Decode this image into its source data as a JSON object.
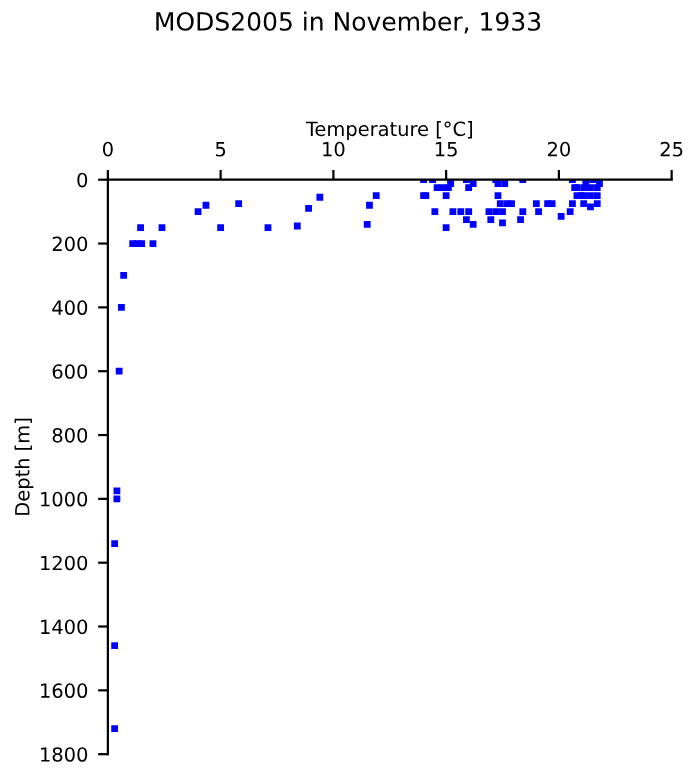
{
  "chart_data": {
    "type": "scatter",
    "title": "MODS2005 in November, 1933",
    "xlabel": "Temperature [°C]",
    "ylabel": "Depth [m]",
    "xlim": [
      0,
      25
    ],
    "xticks": [
      0,
      5,
      10,
      15,
      20,
      25
    ],
    "ylim": [
      1800,
      0
    ],
    "yticks": [
      0,
      200,
      400,
      600,
      800,
      1000,
      1200,
      1400,
      1600,
      1800
    ],
    "grid": false,
    "marker": "square",
    "series": [
      {
        "color": "#0000ff",
        "x": [
          0.3,
          0.3,
          0.3,
          0.4,
          0.4,
          0.5,
          0.6,
          0.7,
          1.1,
          1.3,
          1.5,
          2.0,
          1.45,
          2.4,
          4.0,
          4.35,
          5.0,
          5.8,
          7.1,
          8.4,
          8.9,
          9.4,
          11.5,
          11.6,
          11.9,
          14.0,
          14.0,
          14.1,
          14.4,
          14.5,
          14.6,
          14.85,
          15.0,
          15.0,
          15.1,
          15.2,
          15.2,
          15.3,
          15.65,
          15.9,
          16.0,
          16.0,
          15.9,
          16.2,
          16.2,
          16.9,
          16.98,
          17.2,
          17.2,
          17.3,
          17.3,
          17.4,
          17.5,
          17.5,
          17.6,
          17.7,
          17.9,
          18.3,
          18.4,
          18.4,
          19.0,
          19.1,
          19.5,
          19.7,
          20.1,
          20.5,
          20.6,
          20.6,
          20.7,
          21.0,
          21.1,
          21.4,
          21.7,
          20.8,
          21.1,
          21.4,
          21.7,
          20.8,
          21.1,
          21.4,
          21.7,
          21.2,
          21.5,
          21.8,
          21.2
        ],
        "values": [
          1720,
          1460,
          1140,
          1000,
          975,
          600,
          400,
          300,
          200,
          200,
          200,
          200,
          150,
          150,
          100,
          80,
          150,
          75,
          150,
          145,
          90,
          55,
          140,
          80,
          50,
          0,
          50,
          50,
          0,
          100,
          25,
          25,
          50,
          150,
          25,
          0,
          12,
          100,
          100,
          0,
          25,
          100,
          125,
          12,
          140,
          100,
          125,
          0,
          100,
          12,
          50,
          75,
          100,
          135,
          12,
          75,
          75,
          125,
          100,
          0,
          75,
          100,
          75,
          75,
          115,
          100,
          0,
          75,
          25,
          50,
          75,
          85,
          75,
          50,
          50,
          50,
          50,
          25,
          25,
          25,
          25,
          0,
          0,
          12,
          12
        ]
      }
    ]
  }
}
